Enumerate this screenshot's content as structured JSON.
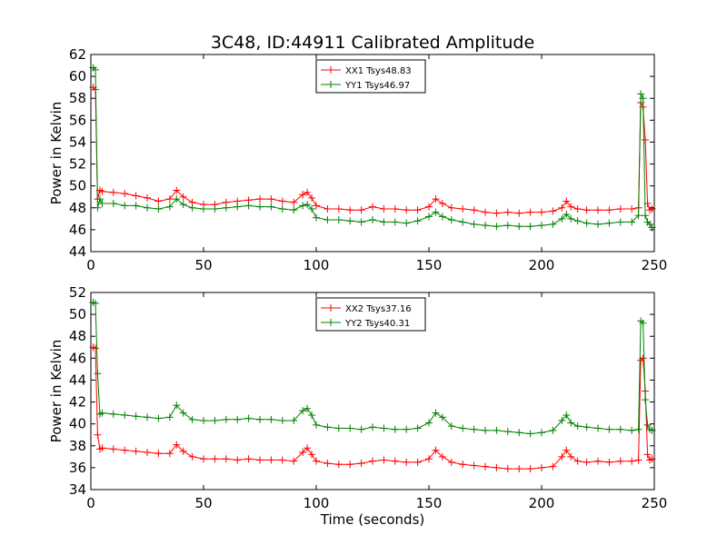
{
  "figure": {
    "title": "3C48, ID:44911 Calibrated Amplitude"
  },
  "chart_data": [
    {
      "type": "line",
      "title": "3C48, ID:44911 Calibrated Amplitude",
      "xlabel": "",
      "ylabel": "Power in Kelvin",
      "xlim": [
        0,
        250
      ],
      "ylim": [
        44,
        62
      ],
      "xticks": [
        "0",
        "50",
        "100",
        "150",
        "200",
        "250"
      ],
      "yticks": [
        "44",
        "46",
        "48",
        "50",
        "52",
        "54",
        "56",
        "58",
        "60",
        "62"
      ],
      "grid": false,
      "legend_position": "top-center",
      "series": [
        {
          "name": "XX1 Tsys48.83",
          "color": "#ff0000",
          "marker": "plus",
          "x": [
            1,
            2,
            3,
            4,
            5,
            10,
            15,
            20,
            25,
            30,
            35,
            38,
            41,
            45,
            50,
            55,
            60,
            65,
            70,
            75,
            80,
            85,
            90,
            94,
            96,
            98,
            100,
            105,
            110,
            115,
            120,
            125,
            130,
            135,
            140,
            145,
            150,
            153,
            156,
            160,
            165,
            170,
            175,
            180,
            185,
            190,
            195,
            200,
            205,
            209,
            211,
            213,
            216,
            220,
            225,
            230,
            235,
            240,
            243,
            244,
            245,
            246,
            247,
            248,
            249
          ],
          "y": [
            59.0,
            58.8,
            48.8,
            49.6,
            49.5,
            49.4,
            49.3,
            49.1,
            48.9,
            48.6,
            48.8,
            49.6,
            49.0,
            48.5,
            48.3,
            48.3,
            48.5,
            48.6,
            48.7,
            48.8,
            48.8,
            48.6,
            48.5,
            49.2,
            49.4,
            48.9,
            48.2,
            47.9,
            47.9,
            47.8,
            47.8,
            48.1,
            47.9,
            47.9,
            47.8,
            47.8,
            48.1,
            48.8,
            48.4,
            48.0,
            47.9,
            47.8,
            47.6,
            47.5,
            47.6,
            47.5,
            47.6,
            47.6,
            47.7,
            48.0,
            48.6,
            48.1,
            47.9,
            47.8,
            47.8,
            47.8,
            47.9,
            47.9,
            48.0,
            57.6,
            57.2,
            54.2,
            48.4,
            47.8,
            47.9
          ]
        },
        {
          "name": "YY1 Tsys46.97",
          "color": "#008000",
          "marker": "plus",
          "x": [
            1,
            2,
            3,
            4,
            5,
            10,
            15,
            20,
            25,
            30,
            35,
            38,
            41,
            45,
            50,
            55,
            60,
            65,
            70,
            75,
            80,
            85,
            90,
            94,
            96,
            98,
            100,
            105,
            110,
            115,
            120,
            125,
            130,
            135,
            140,
            145,
            150,
            153,
            156,
            160,
            165,
            170,
            175,
            180,
            185,
            190,
            195,
            200,
            205,
            209,
            211,
            213,
            216,
            220,
            225,
            230,
            235,
            240,
            243,
            244,
            245,
            246,
            247,
            248,
            249
          ],
          "y": [
            60.8,
            60.6,
            48.0,
            48.8,
            48.4,
            48.4,
            48.2,
            48.2,
            48.0,
            47.9,
            48.1,
            48.8,
            48.3,
            48.0,
            47.9,
            47.9,
            48.0,
            48.1,
            48.2,
            48.1,
            48.1,
            47.9,
            47.8,
            48.2,
            48.3,
            47.9,
            47.1,
            46.9,
            46.9,
            46.8,
            46.7,
            46.9,
            46.7,
            46.7,
            46.6,
            46.8,
            47.2,
            47.6,
            47.2,
            46.9,
            46.7,
            46.5,
            46.4,
            46.3,
            46.4,
            46.3,
            46.3,
            46.4,
            46.5,
            47.0,
            47.4,
            47.0,
            46.8,
            46.6,
            46.5,
            46.6,
            46.7,
            46.7,
            47.3,
            58.4,
            58.0,
            47.3,
            46.7,
            46.5,
            46.2
          ]
        }
      ]
    },
    {
      "type": "line",
      "title": "",
      "xlabel": "Time (seconds)",
      "ylabel": "Power in Kelvin",
      "xlim": [
        0,
        250
      ],
      "ylim": [
        34,
        52
      ],
      "xticks": [
        "0",
        "50",
        "100",
        "150",
        "200",
        "250"
      ],
      "yticks": [
        "34",
        "36",
        "38",
        "40",
        "42",
        "44",
        "46",
        "48",
        "50",
        "52"
      ],
      "grid": false,
      "legend_position": "top-center",
      "series": [
        {
          "name": "XX2 Tsys37.16",
          "color": "#ff0000",
          "marker": "plus",
          "x": [
            1,
            2,
            3,
            4,
            5,
            10,
            15,
            20,
            25,
            30,
            35,
            38,
            41,
            45,
            50,
            55,
            60,
            65,
            70,
            75,
            80,
            85,
            90,
            94,
            96,
            98,
            100,
            105,
            110,
            115,
            120,
            125,
            130,
            135,
            140,
            145,
            150,
            153,
            156,
            160,
            165,
            170,
            175,
            180,
            185,
            190,
            195,
            200,
            205,
            209,
            211,
            213,
            216,
            220,
            225,
            230,
            235,
            240,
            243,
            244,
            245,
            246,
            247,
            248,
            249
          ],
          "y": [
            47.0,
            46.9,
            39.0,
            37.7,
            37.8,
            37.7,
            37.6,
            37.5,
            37.4,
            37.3,
            37.3,
            38.1,
            37.5,
            37.0,
            36.8,
            36.8,
            36.8,
            36.7,
            36.8,
            36.7,
            36.7,
            36.7,
            36.6,
            37.4,
            37.8,
            37.2,
            36.6,
            36.4,
            36.3,
            36.3,
            36.4,
            36.6,
            36.7,
            36.6,
            36.5,
            36.5,
            36.8,
            37.6,
            37.0,
            36.5,
            36.3,
            36.2,
            36.1,
            36.0,
            35.9,
            35.9,
            35.9,
            36.0,
            36.1,
            37.0,
            37.6,
            37.0,
            36.6,
            36.5,
            36.6,
            36.5,
            36.6,
            36.6,
            36.7,
            45.8,
            46.0,
            43.0,
            37.2,
            36.7,
            36.8
          ]
        },
        {
          "name": "YY2 Tsys40.31",
          "color": "#008000",
          "marker": "plus",
          "x": [
            1,
            2,
            3,
            4,
            5,
            10,
            15,
            20,
            25,
            30,
            35,
            38,
            41,
            45,
            50,
            55,
            60,
            65,
            70,
            75,
            80,
            85,
            90,
            94,
            96,
            98,
            100,
            105,
            110,
            115,
            120,
            125,
            130,
            135,
            140,
            145,
            150,
            153,
            156,
            160,
            165,
            170,
            175,
            180,
            185,
            190,
            195,
            200,
            205,
            209,
            211,
            213,
            216,
            220,
            225,
            230,
            235,
            240,
            243,
            244,
            245,
            246,
            247,
            248,
            249
          ],
          "y": [
            51.1,
            51.0,
            44.6,
            40.9,
            41.0,
            40.9,
            40.8,
            40.7,
            40.6,
            40.5,
            40.6,
            41.7,
            41.0,
            40.4,
            40.3,
            40.3,
            40.4,
            40.4,
            40.5,
            40.4,
            40.4,
            40.3,
            40.3,
            41.2,
            41.4,
            40.8,
            39.9,
            39.7,
            39.6,
            39.6,
            39.5,
            39.7,
            39.6,
            39.5,
            39.5,
            39.6,
            40.1,
            41.0,
            40.6,
            39.8,
            39.6,
            39.5,
            39.4,
            39.4,
            39.3,
            39.2,
            39.1,
            39.2,
            39.4,
            40.3,
            40.8,
            40.1,
            39.8,
            39.7,
            39.6,
            39.5,
            39.5,
            39.4,
            39.5,
            49.4,
            49.2,
            42.2,
            39.9,
            39.5,
            39.4
          ]
        }
      ]
    }
  ]
}
